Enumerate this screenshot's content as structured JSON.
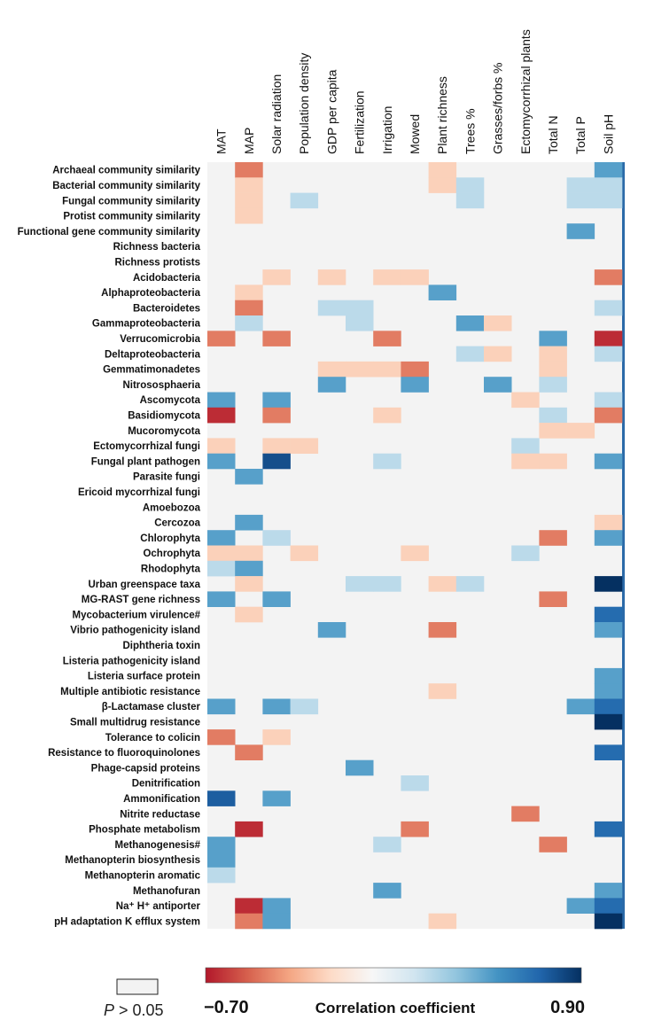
{
  "chart_data": {
    "type": "heatmap",
    "columns": [
      "MAT",
      "MAP",
      "Solar radiation",
      "Population density",
      "GDP per capita",
      "Fertilization",
      "Irrigation",
      "Mowed",
      "Plant richness",
      "Trees %",
      "Grasses/forbs %",
      "Ectomycorrhizal plants",
      "Total N",
      "Total P",
      "Soil pH"
    ],
    "rows": [
      {
        "label": "Archaeal community similarity",
        "values": [
          null,
          -0.45,
          null,
          null,
          null,
          null,
          null,
          null,
          -0.2,
          null,
          null,
          null,
          null,
          null,
          0.5
        ]
      },
      {
        "label": "Bacterial community similarity",
        "values": [
          null,
          -0.2,
          null,
          null,
          null,
          null,
          null,
          null,
          -0.2,
          0.25,
          null,
          null,
          null,
          0.25,
          0.25
        ]
      },
      {
        "label": "Fungal community similarity",
        "values": [
          null,
          -0.2,
          null,
          0.25,
          null,
          null,
          null,
          null,
          null,
          0.25,
          null,
          null,
          null,
          0.25,
          0.25
        ]
      },
      {
        "label": "Protist community similarity",
        "values": [
          null,
          -0.2,
          null,
          null,
          null,
          null,
          null,
          null,
          null,
          null,
          null,
          null,
          null,
          null,
          null
        ]
      },
      {
        "label": "Functional gene community similarity",
        "values": [
          null,
          null,
          null,
          null,
          null,
          null,
          null,
          null,
          null,
          null,
          null,
          null,
          null,
          0.5,
          null
        ]
      },
      {
        "label": "Richness bacteria",
        "values": [
          null,
          null,
          null,
          null,
          null,
          null,
          null,
          null,
          null,
          null,
          null,
          null,
          null,
          null,
          null
        ]
      },
      {
        "label": "Richness protists",
        "values": [
          null,
          null,
          null,
          null,
          null,
          null,
          null,
          null,
          null,
          null,
          null,
          null,
          null,
          null,
          null
        ]
      },
      {
        "label": "Acidobacteria",
        "values": [
          null,
          null,
          -0.2,
          null,
          -0.2,
          null,
          -0.2,
          -0.2,
          null,
          null,
          null,
          null,
          null,
          null,
          -0.45
        ]
      },
      {
        "label": "Alphaproteobacteria",
        "values": [
          null,
          -0.2,
          null,
          null,
          null,
          null,
          null,
          null,
          0.5,
          null,
          null,
          null,
          null,
          null,
          null
        ]
      },
      {
        "label": "Bacteroidetes",
        "values": [
          null,
          -0.45,
          null,
          null,
          0.25,
          0.25,
          null,
          null,
          null,
          null,
          null,
          null,
          null,
          null,
          0.25
        ]
      },
      {
        "label": "Gammaproteobacteria",
        "values": [
          null,
          0.25,
          null,
          null,
          null,
          0.25,
          null,
          null,
          null,
          0.5,
          -0.2,
          null,
          null,
          null,
          null
        ]
      },
      {
        "label": "Verrucomicrobia",
        "values": [
          -0.45,
          null,
          -0.45,
          null,
          null,
          null,
          -0.45,
          null,
          null,
          null,
          null,
          null,
          0.5,
          null,
          -0.65
        ]
      },
      {
        "label": "Deltaproteobacteria",
        "values": [
          null,
          null,
          null,
          null,
          null,
          null,
          null,
          null,
          null,
          0.25,
          -0.2,
          null,
          -0.2,
          null,
          0.25
        ]
      },
      {
        "label": "Gemmatimonadetes",
        "values": [
          null,
          null,
          null,
          null,
          -0.2,
          -0.2,
          -0.2,
          -0.45,
          null,
          null,
          null,
          null,
          -0.2,
          null,
          null
        ]
      },
      {
        "label": "Nitrososphaeria",
        "values": [
          null,
          null,
          null,
          null,
          0.5,
          null,
          null,
          0.5,
          null,
          null,
          0.5,
          null,
          0.25,
          null,
          null
        ]
      },
      {
        "label": "Ascomycota",
        "values": [
          0.5,
          null,
          0.5,
          null,
          null,
          null,
          null,
          null,
          null,
          null,
          null,
          -0.2,
          null,
          null,
          0.25
        ]
      },
      {
        "label": "Basidiomycota",
        "values": [
          -0.65,
          null,
          -0.45,
          null,
          null,
          null,
          -0.2,
          null,
          null,
          null,
          null,
          null,
          0.25,
          null,
          -0.45
        ]
      },
      {
        "label": "Mucoromycota",
        "values": [
          null,
          null,
          null,
          null,
          null,
          null,
          null,
          null,
          null,
          null,
          null,
          null,
          -0.2,
          -0.2,
          null
        ]
      },
      {
        "label": "Ectomycorrhizal fungi",
        "values": [
          -0.2,
          null,
          -0.2,
          -0.2,
          null,
          null,
          null,
          null,
          null,
          null,
          null,
          0.25,
          null,
          null,
          null
        ]
      },
      {
        "label": "Fungal plant pathogen",
        "values": [
          0.5,
          null,
          0.8,
          null,
          null,
          null,
          0.25,
          null,
          null,
          null,
          null,
          -0.2,
          -0.2,
          null,
          0.5
        ]
      },
      {
        "label": "Parasite fungi",
        "values": [
          null,
          0.5,
          null,
          null,
          null,
          null,
          null,
          null,
          null,
          null,
          null,
          null,
          null,
          null,
          null
        ]
      },
      {
        "label": "Ericoid mycorrhizal fungi",
        "values": [
          null,
          null,
          null,
          null,
          null,
          null,
          null,
          null,
          null,
          null,
          null,
          null,
          null,
          null,
          null
        ]
      },
      {
        "label": "Amoebozoa",
        "values": [
          null,
          null,
          null,
          null,
          null,
          null,
          null,
          null,
          null,
          null,
          null,
          null,
          null,
          null,
          null
        ]
      },
      {
        "label": "Cercozoa",
        "values": [
          null,
          0.5,
          null,
          null,
          null,
          null,
          null,
          null,
          null,
          null,
          null,
          null,
          null,
          null,
          -0.2
        ]
      },
      {
        "label": "Chlorophyta",
        "values": [
          0.5,
          null,
          0.25,
          null,
          null,
          null,
          null,
          null,
          null,
          null,
          null,
          null,
          -0.45,
          null,
          0.5
        ]
      },
      {
        "label": "Ochrophyta",
        "values": [
          -0.2,
          -0.2,
          null,
          -0.2,
          null,
          null,
          null,
          -0.2,
          null,
          null,
          null,
          0.25,
          null,
          null,
          null
        ]
      },
      {
        "label": "Rhodophyta",
        "values": [
          0.25,
          0.5,
          null,
          null,
          null,
          null,
          null,
          null,
          null,
          null,
          null,
          null,
          null,
          null,
          null
        ]
      },
      {
        "label": "Urban greenspace taxa",
        "values": [
          null,
          -0.2,
          null,
          null,
          null,
          0.25,
          0.25,
          null,
          -0.2,
          0.25,
          null,
          null,
          null,
          null,
          0.9
        ]
      },
      {
        "label": "MG-RAST gene richness",
        "values": [
          0.5,
          null,
          0.5,
          null,
          null,
          null,
          null,
          null,
          null,
          null,
          null,
          null,
          -0.45,
          null,
          null
        ]
      },
      {
        "label": "Mycobacterium virulence#",
        "values": [
          null,
          -0.2,
          null,
          null,
          null,
          null,
          null,
          null,
          null,
          null,
          null,
          null,
          null,
          null,
          0.7
        ]
      },
      {
        "label": "Vibrio pathogenicity island",
        "values": [
          null,
          null,
          null,
          null,
          0.5,
          null,
          null,
          null,
          -0.45,
          null,
          null,
          null,
          null,
          null,
          0.5
        ]
      },
      {
        "label": "Diphtheria toxin",
        "values": [
          null,
          null,
          null,
          null,
          null,
          null,
          null,
          null,
          null,
          null,
          null,
          null,
          null,
          null,
          null
        ]
      },
      {
        "label": "Listeria pathogenicity island",
        "values": [
          null,
          null,
          null,
          null,
          null,
          null,
          null,
          null,
          null,
          null,
          null,
          null,
          null,
          null,
          null
        ]
      },
      {
        "label": "Listeria surface protein",
        "values": [
          null,
          null,
          null,
          null,
          null,
          null,
          null,
          null,
          null,
          null,
          null,
          null,
          null,
          null,
          0.5
        ]
      },
      {
        "label": "Multiple antibiotic resistance",
        "values": [
          null,
          null,
          null,
          null,
          null,
          null,
          null,
          null,
          -0.2,
          null,
          null,
          null,
          null,
          null,
          0.5
        ]
      },
      {
        "label": "β-Lactamase cluster",
        "values": [
          0.5,
          null,
          0.5,
          0.25,
          null,
          null,
          null,
          null,
          null,
          null,
          null,
          null,
          null,
          0.5,
          0.7
        ]
      },
      {
        "label": "Small multidrug resistance",
        "values": [
          null,
          null,
          null,
          null,
          null,
          null,
          null,
          null,
          null,
          null,
          null,
          null,
          null,
          null,
          0.9
        ]
      },
      {
        "label": "Tolerance to colicin",
        "values": [
          -0.45,
          null,
          -0.2,
          null,
          null,
          null,
          null,
          null,
          null,
          null,
          null,
          null,
          null,
          null,
          null
        ]
      },
      {
        "label": "Resistance to fluoroquinolones",
        "values": [
          null,
          -0.45,
          null,
          null,
          null,
          null,
          null,
          null,
          null,
          null,
          null,
          null,
          null,
          null,
          0.7
        ]
      },
      {
        "label": "Phage-capsid proteins",
        "values": [
          null,
          null,
          null,
          null,
          null,
          0.5,
          null,
          null,
          null,
          null,
          null,
          null,
          null,
          null,
          null
        ]
      },
      {
        "label": "Denitrification",
        "values": [
          null,
          null,
          null,
          null,
          null,
          null,
          null,
          0.25,
          null,
          null,
          null,
          null,
          null,
          null,
          null
        ]
      },
      {
        "label": "Ammonification",
        "values": [
          0.75,
          null,
          0.5,
          null,
          null,
          null,
          null,
          null,
          null,
          null,
          null,
          null,
          null,
          null,
          null
        ]
      },
      {
        "label": "Nitrite reductase",
        "values": [
          null,
          null,
          null,
          null,
          null,
          null,
          null,
          null,
          null,
          null,
          null,
          -0.45,
          null,
          null,
          null
        ]
      },
      {
        "label": "Phosphate metabolism",
        "values": [
          null,
          -0.65,
          null,
          null,
          null,
          null,
          null,
          -0.45,
          null,
          null,
          null,
          null,
          null,
          null,
          0.7
        ]
      },
      {
        "label": "Methanogenesis#",
        "values": [
          0.5,
          null,
          null,
          null,
          null,
          null,
          0.25,
          null,
          null,
          null,
          null,
          null,
          -0.45,
          null,
          null
        ]
      },
      {
        "label": "Methanopterin biosynthesis",
        "values": [
          0.5,
          null,
          null,
          null,
          null,
          null,
          null,
          null,
          null,
          null,
          null,
          null,
          null,
          null,
          null
        ]
      },
      {
        "label": "Methanopterin aromatic",
        "values": [
          0.25,
          null,
          null,
          null,
          null,
          null,
          null,
          null,
          null,
          null,
          null,
          null,
          null,
          null,
          null
        ]
      },
      {
        "label": "Methanofuran",
        "values": [
          null,
          null,
          null,
          null,
          null,
          null,
          0.5,
          null,
          null,
          null,
          null,
          null,
          null,
          null,
          0.5
        ]
      },
      {
        "label": "Na⁺ H⁺ antiporter",
        "values": [
          null,
          -0.65,
          0.5,
          null,
          null,
          null,
          null,
          null,
          null,
          null,
          null,
          null,
          null,
          0.5,
          0.7
        ]
      },
      {
        "label": "pH adaptation K efflux system",
        "values": [
          null,
          -0.45,
          0.5,
          null,
          null,
          null,
          null,
          null,
          -0.2,
          null,
          null,
          null,
          null,
          null,
          0.9
        ]
      }
    ],
    "colorbar": {
      "min": -0.7,
      "max": 0.9,
      "min_label": "−0.70",
      "max_label": "0.90",
      "title": "Correlation coefficient",
      "colors": [
        "#b2182b",
        "#d6604d",
        "#f4a582",
        "#fddbc7",
        "#f7f7f7",
        "#d1e5f0",
        "#92c5de",
        "#4393c3",
        "#2166ac",
        "#053061"
      ]
    },
    "nonsignificant_color": "#f3f3f3",
    "legend_p_label": "P > 0.05"
  }
}
